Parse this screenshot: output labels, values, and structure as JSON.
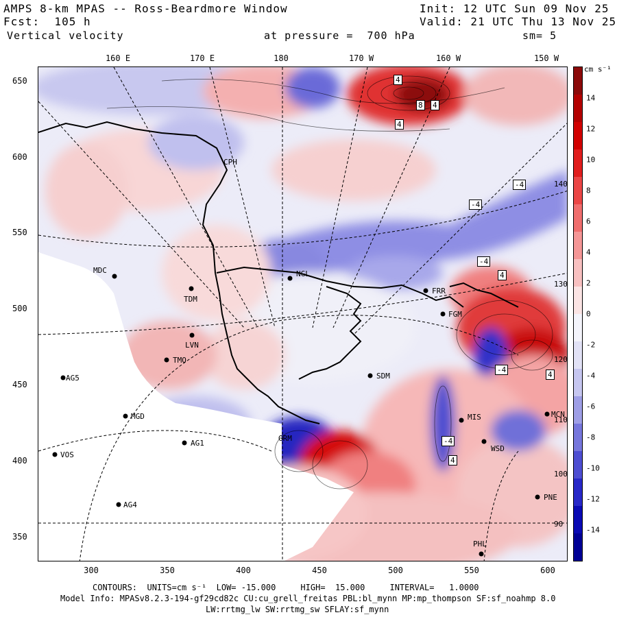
{
  "header": {
    "line1_left": "AMPS 8-km MPAS -- Ross-Beardmore Window",
    "line1_right": "Init: 12 UTC Sun 09 Nov 25",
    "line2_left": "Fcst:  105 h",
    "line2_right": "Valid: 21 UTC Thu 13 Nov 25",
    "line3_left": "Vertical velocity",
    "line3_mid": "at pressure =  700 hPa",
    "line3_right": "sm= 5"
  },
  "lon_labels": [
    "160 E",
    "170 E",
    "180",
    "170 W",
    "160 W",
    "150 W"
  ],
  "lat_ticks": [
    "650",
    "600",
    "550",
    "500",
    "450",
    "400",
    "350"
  ],
  "x_ticks": [
    "300",
    "350",
    "400",
    "450",
    "500",
    "550",
    "600"
  ],
  "colorbar": {
    "units": "cm s⁻¹",
    "labels": [
      "14",
      "12",
      "10",
      "8",
      "6",
      "4",
      "2",
      "0",
      "-2",
      "-4",
      "-6",
      "-8",
      "-10",
      "-12",
      "-14"
    ],
    "colors": [
      "#8c0a0a",
      "#b40000",
      "#d20000",
      "#e11e1e",
      "#eb4646",
      "#f06e6e",
      "#f59696",
      "#f8c0c0",
      "#fbe4e4",
      "#f4f4fb",
      "#e2e2f6",
      "#c6c6f0",
      "#9e9ee6",
      "#7676dc",
      "#4e4ed2",
      "#2828c8",
      "#0a0ab4",
      "#000096"
    ]
  },
  "side_labels": [
    "140 W",
    "130 W",
    "120 W",
    "110 W",
    "100 W",
    "90 W"
  ],
  "stations": [
    {
      "name": "MDC"
    },
    {
      "name": "TDM"
    },
    {
      "name": "LVN"
    },
    {
      "name": "TMO"
    },
    {
      "name": "AG5"
    },
    {
      "name": "MGD"
    },
    {
      "name": "AG1"
    },
    {
      "name": "VOS"
    },
    {
      "name": "AG4"
    },
    {
      "name": "NGL"
    },
    {
      "name": "CPH"
    },
    {
      "name": "SDM"
    },
    {
      "name": "FRR"
    },
    {
      "name": "FGM"
    },
    {
      "name": "GRM"
    },
    {
      "name": "MIS"
    },
    {
      "name": "WSD"
    },
    {
      "name": "MCN"
    },
    {
      "name": "PNE"
    },
    {
      "name": "PHL"
    }
  ],
  "contour_labels": [
    "4",
    "8",
    "4",
    "4",
    "-4",
    "-4",
    "-4",
    "4",
    "4",
    "4",
    "-4",
    "-4"
  ],
  "footer": {
    "contours": "CONTOURS:  UNITS=cm s⁻¹  LOW= -15.000     HIGH=  15.000     INTERVAL=   1.0000",
    "model1": "Model Info: MPASv8.2.3-194-gf29cd82c CU:cu_grell_freitas PBL:bl_mynn MP:mp_thompson SF:sf_noahmp 8.0",
    "model2": "LW:rrtmg_lw SW:rrtmg_sw SFLAY:sf_mynn"
  }
}
